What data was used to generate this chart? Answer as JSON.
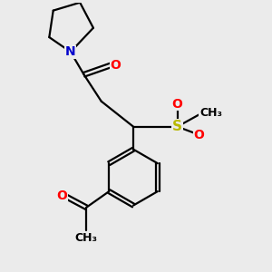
{
  "bg_color": "#ebebeb",
  "atom_colors": {
    "C": "#000000",
    "N": "#0000cc",
    "O": "#ff0000",
    "S": "#b8b800",
    "H": "#000000"
  },
  "bond_color": "#000000",
  "lw": 1.6,
  "fs": 10
}
